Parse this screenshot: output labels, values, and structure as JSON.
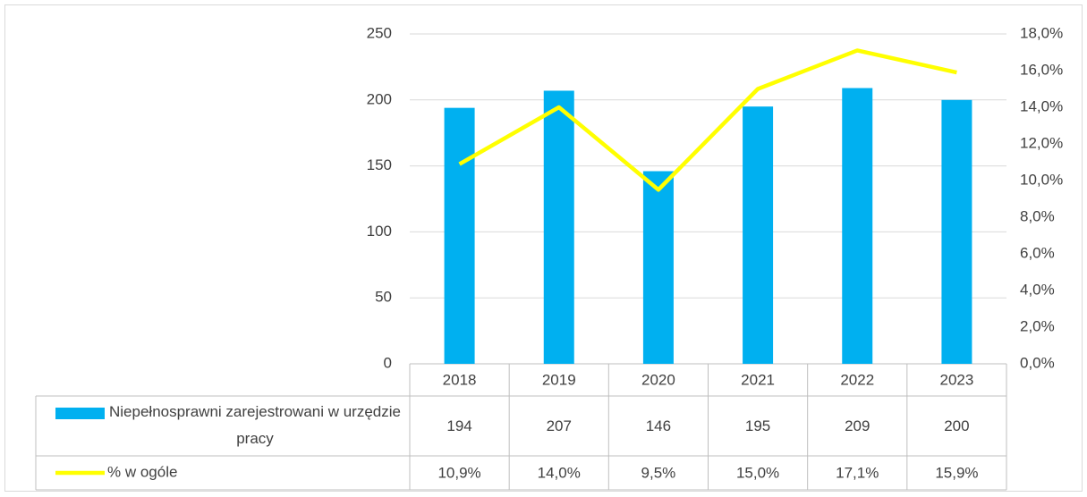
{
  "chart_data": {
    "type": "bar",
    "categories": [
      "2018",
      "2019",
      "2020",
      "2021",
      "2022",
      "2023"
    ],
    "series": [
      {
        "name": "Niepełnosprawni zarejestrowani w urzędzie pracy",
        "type": "bar",
        "color": "#00b0f0",
        "values": [
          194,
          207,
          146,
          195,
          209,
          200
        ]
      },
      {
        "name": "% w ogóle",
        "type": "line",
        "axis": "y2",
        "color": "#ffff00",
        "values": [
          10.9,
          14.0,
          9.5,
          15.0,
          17.1,
          15.9
        ],
        "value_labels": [
          "10,9%",
          "14,0%",
          "9,5%",
          "15,0%",
          "17,1%",
          "15,9%"
        ]
      }
    ],
    "ylim": [
      0,
      250
    ],
    "yticks": [
      0,
      50,
      100,
      150,
      200,
      250
    ],
    "y2lim": [
      0,
      18
    ],
    "y2ticks": [
      {
        "value": 0,
        "label": "0,0%"
      },
      {
        "value": 2,
        "label": "2,0%"
      },
      {
        "value": 4,
        "label": "4,0%"
      },
      {
        "value": 6,
        "label": "6,0%"
      },
      {
        "value": 8,
        "label": "8,0%"
      },
      {
        "value": 10,
        "label": "10,0%"
      },
      {
        "value": 12,
        "label": "12,0%"
      },
      {
        "value": 14,
        "label": "14,0%"
      },
      {
        "value": 16,
        "label": "16,0%"
      },
      {
        "value": 18,
        "label": "18,0%"
      }
    ],
    "grid": true
  }
}
